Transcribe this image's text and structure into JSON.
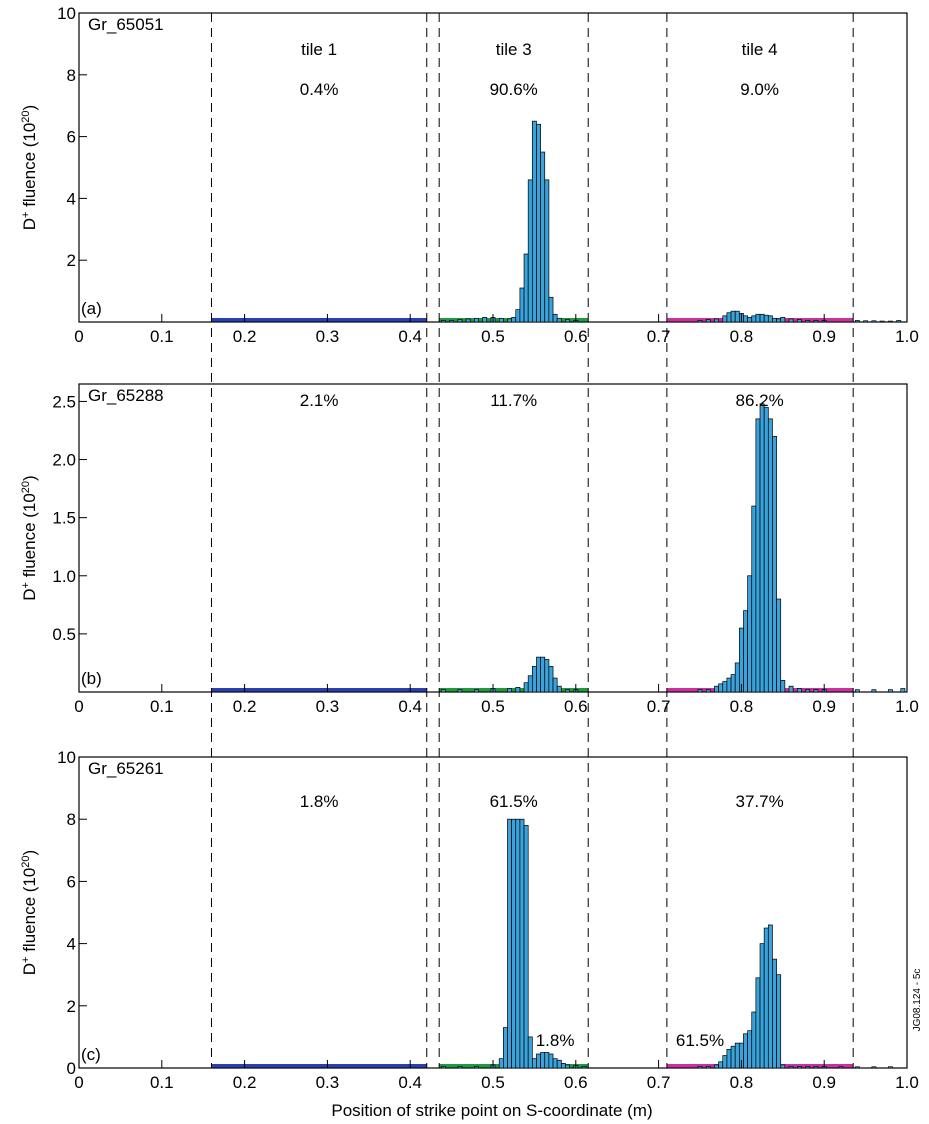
{
  "figure": {
    "xlabel": "Position of strike point on S-coordinate (m)",
    "side_label": "JG08.124 - 5c",
    "tile_labels": [
      "tile 1",
      "tile 3",
      "tile 4"
    ],
    "tile_boundaries": [
      0.16,
      0.42,
      0.435,
      0.615,
      0.71,
      0.935
    ],
    "xticks": [
      "0",
      "0.1",
      "0.2",
      "0.3",
      "0.4",
      "0.5",
      "0.6",
      "0.7",
      "0.8",
      "0.9",
      "1.0"
    ],
    "colors": {
      "tile1": "#2a3fb0",
      "tile3": "#1f9a3c",
      "tile4": "#cc2f9e",
      "bar": "#3aa3dc"
    }
  },
  "chart_data": [
    {
      "type": "bar",
      "panel": "(a)",
      "shot": "Gr_65051",
      "ylabel": "D+ fluence (10^20)",
      "ylim": [
        0,
        10
      ],
      "yticks": [
        "10",
        "8",
        "6",
        "4",
        "2"
      ],
      "percentages": [
        "0.4%",
        "90.6%",
        "9.0%"
      ],
      "extra_labels": [],
      "x": [
        0.44,
        0.45,
        0.46,
        0.47,
        0.48,
        0.49,
        0.5,
        0.51,
        0.52,
        0.525,
        0.53,
        0.535,
        0.54,
        0.545,
        0.55,
        0.555,
        0.56,
        0.565,
        0.57,
        0.575,
        0.58,
        0.59,
        0.6,
        0.75,
        0.76,
        0.77,
        0.78,
        0.785,
        0.79,
        0.795,
        0.8,
        0.805,
        0.81,
        0.815,
        0.82,
        0.825,
        0.83,
        0.835,
        0.84,
        0.845,
        0.85,
        0.86,
        0.87,
        0.88,
        0.89,
        0.9,
        0.94,
        0.95,
        0.96,
        0.97,
        0.98,
        0.99
      ],
      "values": [
        0.05,
        0.05,
        0.08,
        0.1,
        0.12,
        0.15,
        0.15,
        0.12,
        0.1,
        0.15,
        0.4,
        1.1,
        2.2,
        4.6,
        6.5,
        6.4,
        5.5,
        4.6,
        0.8,
        0.25,
        0.12,
        0.08,
        0.05,
        0.05,
        0.08,
        0.1,
        0.2,
        0.3,
        0.35,
        0.35,
        0.28,
        0.2,
        0.15,
        0.2,
        0.25,
        0.25,
        0.22,
        0.2,
        0.12,
        0.1,
        0.15,
        0.1,
        0.08,
        0.05,
        0.05,
        0.05,
        0.05,
        0.04,
        0.04,
        0.03,
        0.03,
        0.05
      ]
    },
    {
      "type": "bar",
      "panel": "(b)",
      "shot": "Gr_65288",
      "ylabel": "D+ fluence (10^20)",
      "ylim": [
        0,
        2.65
      ],
      "yticks": [
        "2.5",
        "2.0",
        "1.5",
        "1.0",
        "0.5"
      ],
      "percentages": [
        "2.1%",
        "11.7%",
        "86.2%"
      ],
      "extra_labels": [],
      "x": [
        0.44,
        0.46,
        0.48,
        0.5,
        0.52,
        0.53,
        0.54,
        0.545,
        0.55,
        0.555,
        0.56,
        0.565,
        0.57,
        0.575,
        0.58,
        0.59,
        0.6,
        0.75,
        0.76,
        0.77,
        0.775,
        0.78,
        0.785,
        0.79,
        0.795,
        0.8,
        0.805,
        0.81,
        0.815,
        0.82,
        0.825,
        0.83,
        0.835,
        0.84,
        0.845,
        0.85,
        0.86,
        0.87,
        0.88,
        0.89,
        0.9,
        0.94,
        0.96,
        0.98,
        0.995
      ],
      "values": [
        0.02,
        0.02,
        0.02,
        0.03,
        0.03,
        0.04,
        0.08,
        0.14,
        0.22,
        0.3,
        0.3,
        0.28,
        0.22,
        0.12,
        0.05,
        0.02,
        0.02,
        0.02,
        0.02,
        0.05,
        0.07,
        0.09,
        0.12,
        0.15,
        0.25,
        0.55,
        0.7,
        1.0,
        1.6,
        2.35,
        2.48,
        2.45,
        2.35,
        2.2,
        0.8,
        0.1,
        0.05,
        0.03,
        0.02,
        0.02,
        0.02,
        0.02,
        0.02,
        0.02,
        0.03
      ]
    },
    {
      "type": "bar",
      "panel": "(c)",
      "shot": "Gr_65261",
      "ylabel": "D+ fluence (10^20)",
      "ylim": [
        0,
        10
      ],
      "yticks": [
        "10",
        "8",
        "6",
        "4",
        "2",
        "0"
      ],
      "percentages": [
        "1.8%",
        "61.5%",
        "37.7%"
      ],
      "extra_labels": [
        "1.8%",
        "61.5%"
      ],
      "x": [
        0.44,
        0.46,
        0.48,
        0.5,
        0.51,
        0.515,
        0.52,
        0.525,
        0.53,
        0.535,
        0.54,
        0.545,
        0.55,
        0.555,
        0.56,
        0.565,
        0.57,
        0.575,
        0.58,
        0.585,
        0.59,
        0.6,
        0.61,
        0.75,
        0.76,
        0.77,
        0.775,
        0.78,
        0.785,
        0.79,
        0.795,
        0.8,
        0.805,
        0.81,
        0.815,
        0.82,
        0.825,
        0.83,
        0.835,
        0.84,
        0.845,
        0.85,
        0.86,
        0.87,
        0.88,
        0.89,
        0.9,
        0.92,
        0.94,
        0.96,
        0.98
      ],
      "values": [
        0.05,
        0.05,
        0.05,
        0.1,
        0.3,
        1.3,
        8.0,
        8.0,
        8.0,
        8.0,
        7.8,
        1.0,
        0.3,
        0.45,
        0.5,
        0.5,
        0.45,
        0.3,
        0.25,
        0.15,
        0.1,
        0.08,
        0.05,
        0.05,
        0.05,
        0.1,
        0.2,
        0.4,
        0.6,
        0.7,
        0.8,
        0.8,
        1.1,
        1.2,
        1.8,
        2.9,
        4.0,
        4.5,
        4.6,
        3.5,
        3.0,
        0.1,
        0.05,
        0.05,
        0.05,
        0.05,
        0.05,
        0.04,
        0.04,
        0.04,
        0.04
      ]
    }
  ]
}
